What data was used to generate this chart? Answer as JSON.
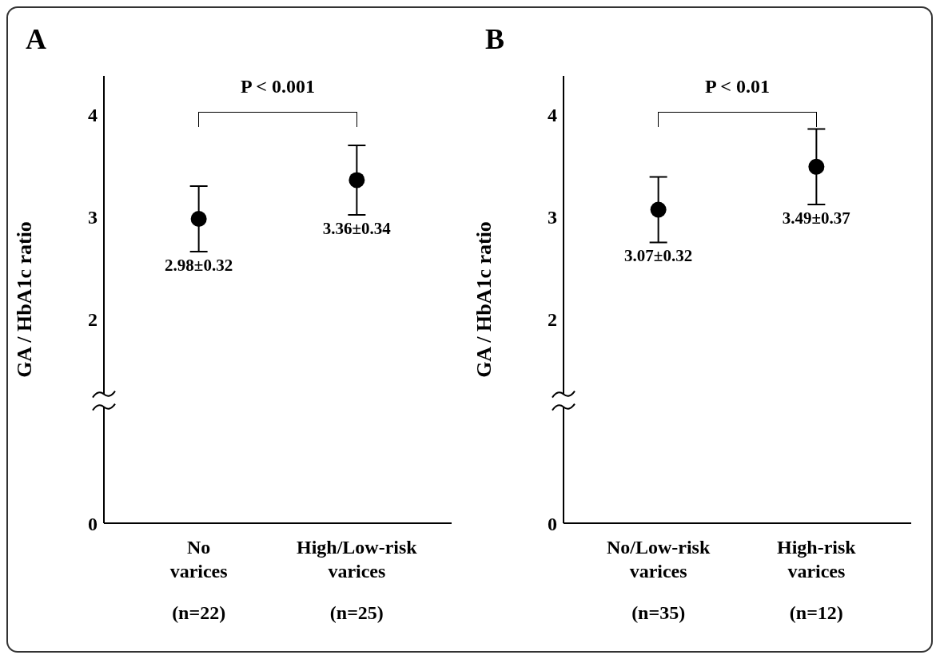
{
  "chart_data": [
    {
      "type": "scatter",
      "title": "A",
      "ylabel": "GA / HbA1c ratio",
      "categories": [
        "No\nvarices\n(n=22)",
        "High/Low-risk\nvarices\n(n=25)"
      ],
      "series": [
        {
          "color": "#000000",
          "values": [
            2.98,
            3.36
          ],
          "errors": [
            0.32,
            0.34
          ],
          "value_labels": [
            "2.98±0.32",
            "3.36±0.34"
          ]
        }
      ],
      "ylim": [
        0,
        4.38
      ],
      "yticks": [
        0,
        2,
        3,
        4
      ],
      "marker": "circle",
      "annotations": [
        "P < 0.001"
      ]
    },
    {
      "type": "scatter",
      "title": "B",
      "ylabel": "GA / HbA1c ratio",
      "categories": [
        "No/Low-risk\nvarices\n(n=35)",
        "High-risk\nvarices\n(n=12)"
      ],
      "series": [
        {
          "color": "#000000",
          "values": [
            3.07,
            3.49
          ],
          "errors": [
            0.32,
            0.37
          ],
          "value_labels": [
            "3.07±0.32",
            "3.49±0.37"
          ]
        }
      ],
      "ylim": [
        0,
        4.38
      ],
      "yticks": [
        0,
        2,
        3,
        4
      ],
      "marker": "circle",
      "annotations": [
        "P < 0.01"
      ]
    }
  ]
}
